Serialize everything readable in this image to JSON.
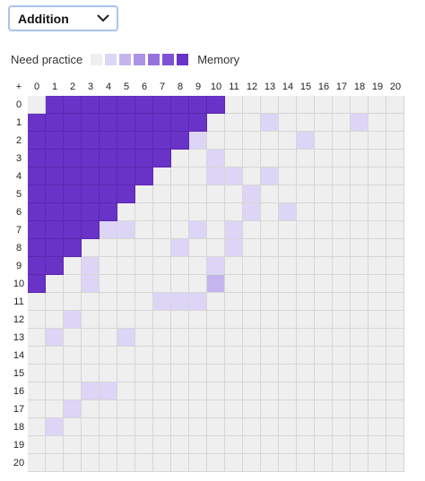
{
  "operation_select": {
    "value": "Addition"
  },
  "legend": {
    "low_label": "Need practice",
    "high_label": "Memory",
    "levels": [
      "#efefef",
      "#ddd5f6",
      "#c5b5ef",
      "#ab94e6",
      "#9573de",
      "#7f52d5",
      "#6a33c8"
    ]
  },
  "grid": {
    "corner": "+",
    "col_headers": [
      "0",
      "1",
      "2",
      "3",
      "4",
      "5",
      "6",
      "7",
      "8",
      "9",
      "10",
      "11",
      "12",
      "13",
      "14",
      "15",
      "16",
      "17",
      "18",
      "19",
      "20"
    ],
    "row_headers": [
      "0",
      "1",
      "2",
      "3",
      "4",
      "5",
      "6",
      "7",
      "8",
      "9",
      "10",
      "11",
      "12",
      "13",
      "14",
      "15",
      "16",
      "17",
      "18",
      "19",
      "20"
    ],
    "empty_color": "#efefef",
    "memory_color": "#6a33c8",
    "light_color": "#ddd5f6",
    "mid_color": "#c5b5ef",
    "memorized_ranges": [
      [
        1,
        10
      ],
      [
        0,
        9
      ],
      [
        0,
        8
      ],
      [
        0,
        7
      ],
      [
        0,
        6
      ],
      [
        0,
        5
      ],
      [
        0,
        4
      ],
      [
        0,
        3
      ],
      [
        0,
        2
      ],
      [
        0,
        1
      ],
      [
        0,
        0
      ],
      null,
      null,
      null,
      null,
      null,
      null,
      null,
      null,
      null,
      null
    ],
    "light_cells": [
      [
        1,
        13
      ],
      [
        1,
        18
      ],
      [
        2,
        9
      ],
      [
        2,
        15
      ],
      [
        3,
        10
      ],
      [
        4,
        10
      ],
      [
        4,
        11
      ],
      [
        4,
        13
      ],
      [
        5,
        12
      ],
      [
        6,
        12
      ],
      [
        6,
        14
      ],
      [
        7,
        4
      ],
      [
        7,
        5
      ],
      [
        7,
        9
      ],
      [
        7,
        11
      ],
      [
        8,
        8
      ],
      [
        8,
        11
      ],
      [
        9,
        3
      ],
      [
        9,
        10
      ],
      [
        10,
        3
      ],
      [
        11,
        7
      ],
      [
        11,
        8
      ],
      [
        11,
        9
      ],
      [
        12,
        2
      ],
      [
        13,
        1
      ],
      [
        13,
        5
      ],
      [
        16,
        3
      ],
      [
        16,
        4
      ],
      [
        17,
        2
      ],
      [
        18,
        1
      ]
    ],
    "mid_cells": [
      [
        10,
        10
      ]
    ]
  }
}
